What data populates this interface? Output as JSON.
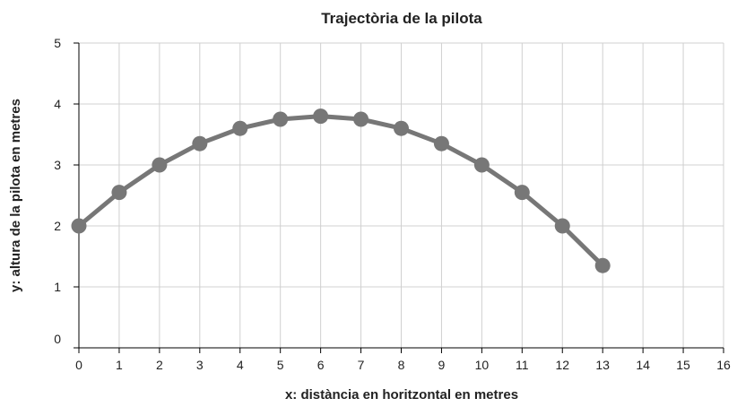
{
  "chart_data": {
    "type": "line",
    "title": "Trajectòria de la pilota",
    "x_label": "x: distància en horitzontal en metres",
    "y_label": "y: altura de la pilota en metres",
    "x": [
      0,
      1,
      2,
      3,
      4,
      5,
      6,
      7,
      8,
      9,
      10,
      11,
      12,
      13
    ],
    "series": [
      {
        "name": "y",
        "color": "#777777",
        "values": [
          2,
          2.55,
          3,
          3.35,
          3.6,
          3.75,
          3.8,
          3.75,
          3.6,
          3.35,
          3,
          2.55,
          2,
          1.35
        ]
      }
    ],
    "xlim": [
      0,
      16
    ],
    "xticks": [
      0,
      1,
      2,
      3,
      4,
      5,
      6,
      7,
      8,
      9,
      10,
      11,
      12,
      13,
      14,
      15,
      16
    ],
    "ylim": [
      0,
      5
    ],
    "yticks": [
      0,
      1,
      2,
      3,
      4,
      5
    ],
    "grid": true
  }
}
